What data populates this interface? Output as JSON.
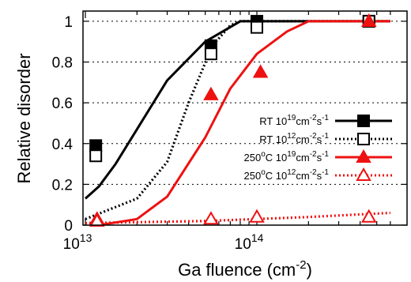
{
  "chart_data": {
    "type": "line",
    "title": "",
    "xlabel": "Ga fluence (cm",
    "xlabel_sup": "-2",
    "xlabel_tail": ")",
    "ylabel": "Relative disorder",
    "x_scale": "log",
    "xlim": [
      10000000000000,
      650000000000000
    ],
    "ylim": [
      0,
      1.05
    ],
    "x_ticks": [
      {
        "value": 10000000000000,
        "base": "10",
        "exp": "13"
      },
      {
        "value": 100000000000000,
        "base": "10",
        "exp": "14"
      }
    ],
    "y_ticks": [
      0,
      0.2,
      0.4,
      0.6,
      0.8,
      1
    ],
    "y_tick_labels": [
      "0",
      "0.2",
      "0.4",
      "0.6",
      "0.8",
      "1"
    ],
    "legend_position": "right",
    "series": [
      {
        "legend": {
          "prefix": "RT 10",
          "flux_exp": "19",
          "unit": "cm",
          "exp1": "-2",
          "s": "s",
          "exp2": "-1"
        },
        "color": "#000000",
        "line_style": "solid",
        "marker": "filled-square",
        "line": {
          "x": [
            10000000000000,
            12000000000000,
            15000000000000,
            20000000000000,
            30000000000000,
            50000000000000,
            80000000000000,
            100000000000000,
            200000000000000,
            600000000000000
          ],
          "y": [
            0.13,
            0.19,
            0.3,
            0.47,
            0.71,
            0.9,
            1.0,
            1.0,
            1.0,
            1.0
          ]
        },
        "points": {
          "x": [
            11500000000000,
            54000000000000,
            100000000000000,
            450000000000000
          ],
          "y": [
            0.39,
            0.88,
            1.0,
            1.0
          ]
        }
      },
      {
        "legend": {
          "prefix": "RT 10",
          "flux_exp": "12",
          "unit": "cm",
          "exp1": "-2",
          "s": "s",
          "exp2": "-1"
        },
        "color": "#000000",
        "line_style": "dotted",
        "marker": "open-square",
        "line": {
          "x": [
            10000000000000,
            20000000000000,
            30000000000000,
            40000000000000,
            55000000000000,
            70000000000000,
            80000000000000,
            100000000000000,
            200000000000000,
            600000000000000
          ],
          "y": [
            0.03,
            0.13,
            0.31,
            0.6,
            0.88,
            0.98,
            1.0,
            1.0,
            1.0,
            1.0
          ]
        },
        "points": {
          "x": [
            11500000000000,
            54000000000000,
            100000000000000,
            450000000000000
          ],
          "y": [
            0.34,
            0.84,
            0.97,
            1.0
          ]
        }
      },
      {
        "legend": {
          "prefix": "250",
          "deg": "o",
          "mid": "C 10",
          "flux_exp": "19",
          "unit": "cm",
          "exp1": "-2",
          "s": "s",
          "exp2": "-1"
        },
        "color": "#ee1111",
        "line_style": "solid",
        "marker": "filled-triangle",
        "line": {
          "x": [
            12000000000000,
            20000000000000,
            30000000000000,
            50000000000000,
            70000000000000,
            100000000000000,
            150000000000000,
            200000000000000,
            600000000000000
          ],
          "y": [
            0.0,
            0.03,
            0.14,
            0.43,
            0.67,
            0.84,
            0.95,
            1.0,
            1.0
          ]
        },
        "points": {
          "x": [
            11700000000000,
            54000000000000,
            105000000000000,
            450000000000000
          ],
          "y": [
            0.03,
            0.64,
            0.75,
            1.0
          ]
        }
      },
      {
        "legend": {
          "prefix": "250",
          "deg": "o",
          "mid": "C 10",
          "flux_exp": "12",
          "unit": "cm",
          "exp1": "-2",
          "s": "s",
          "exp2": "-1"
        },
        "color": "#ee1111",
        "line_style": "dotted",
        "marker": "open-triangle",
        "line": {
          "x": [
            10000000000000,
            50000000000000,
            100000000000000,
            200000000000000,
            600000000000000
          ],
          "y": [
            0.01,
            0.02,
            0.03,
            0.04,
            0.06
          ]
        },
        "points": {
          "x": [
            11700000000000,
            54000000000000,
            100000000000000,
            450000000000000
          ],
          "y": [
            0.02,
            0.03,
            0.04,
            0.04
          ]
        }
      }
    ]
  }
}
